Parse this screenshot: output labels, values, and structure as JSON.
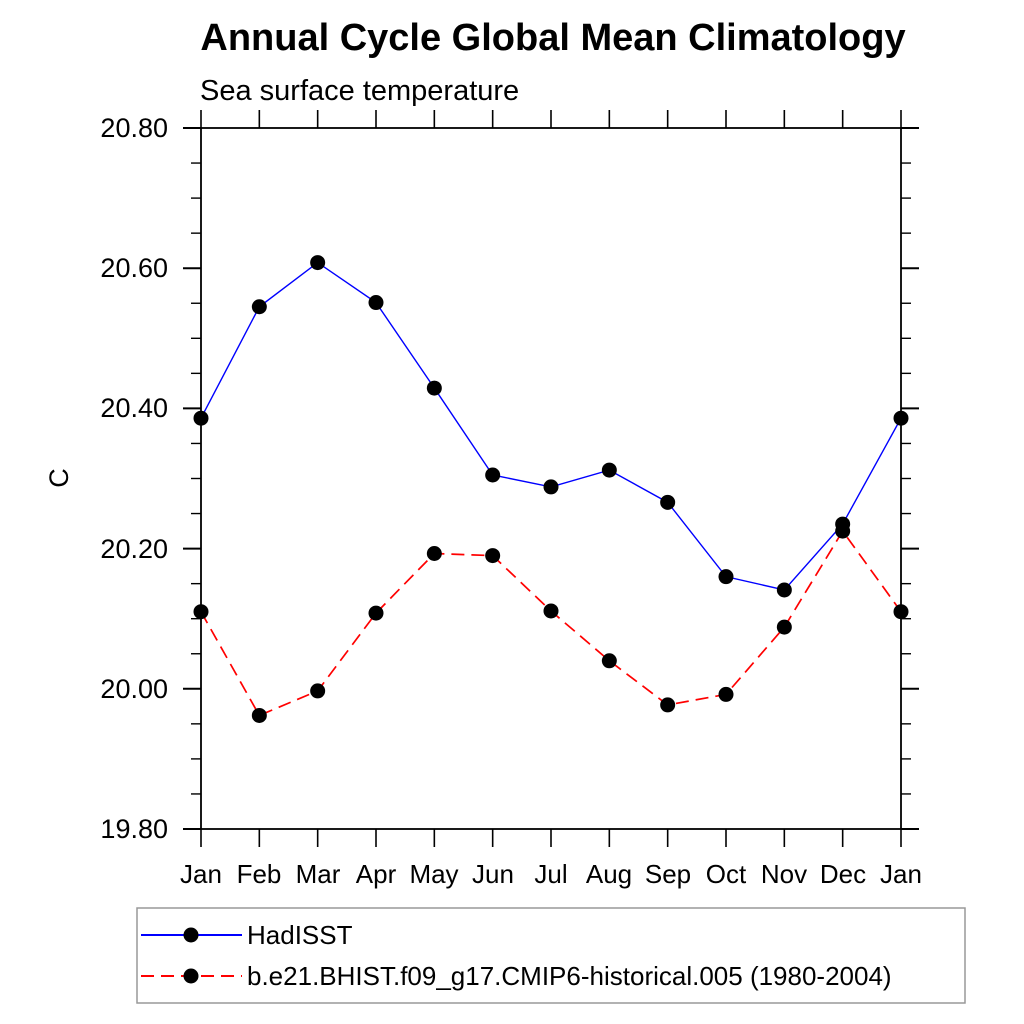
{
  "chart_data": {
    "type": "line",
    "title": "Annual Cycle Global Mean Climatology",
    "subtitle": "Sea surface temperature",
    "ylabel": "C",
    "xlabel": "",
    "categories": [
      "Jan",
      "Feb",
      "Mar",
      "Apr",
      "May",
      "Jun",
      "Jul",
      "Aug",
      "Sep",
      "Oct",
      "Nov",
      "Dec",
      "Jan"
    ],
    "ylim": [
      19.8,
      20.8
    ],
    "y_major_tick_step": 0.2,
    "y_minor_tick_step": 0.05,
    "y_tick_labels_top_to_bottom": [
      "20.80",
      "20.60",
      "20.40",
      "20.20",
      "20.00",
      "19.80"
    ],
    "grid": false,
    "ticks_point_outward": true,
    "legend_position": "bottom-left-box",
    "series": [
      {
        "name": "HadISST",
        "color": "#0000ff",
        "line_style": "solid",
        "marker": "filled-circle",
        "marker_color": "#000000",
        "values": [
          20.386,
          20.545,
          20.608,
          20.551,
          20.429,
          20.305,
          20.288,
          20.312,
          20.266,
          20.16,
          20.141,
          20.235,
          20.386
        ]
      },
      {
        "name": "b.e21.BHIST.f09_g17.CMIP6-historical.005 (1980-2004)",
        "color": "#ff0000",
        "line_style": "dashed",
        "marker": "filled-circle",
        "marker_color": "#000000",
        "values": [
          20.11,
          19.962,
          19.997,
          20.108,
          20.193,
          20.19,
          20.111,
          20.04,
          19.977,
          19.992,
          20.088,
          20.225,
          20.11
        ]
      }
    ]
  }
}
